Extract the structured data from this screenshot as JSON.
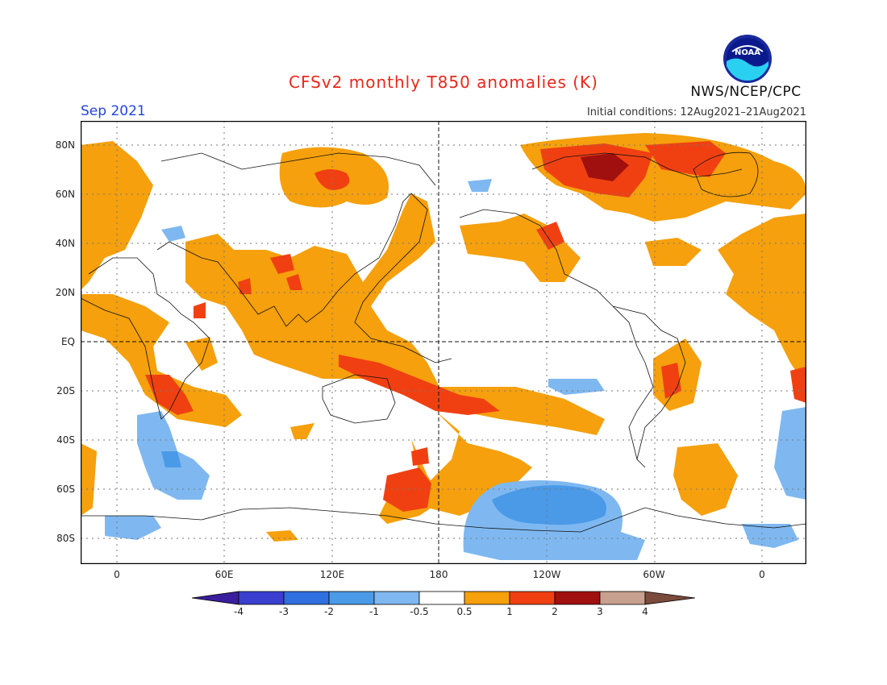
{
  "header": {
    "title": "CFSv2 monthly T850 anomalies (K)",
    "month": "Sep 2021",
    "initial_conditions": "Initial conditions: 12Aug2021–21Aug2021",
    "agency": "NWS/NCEP/CPC",
    "logo_text": "NOAA"
  },
  "axes": {
    "lat_labels": [
      "80N",
      "60N",
      "40N",
      "20N",
      "EQ",
      "20S",
      "40S",
      "60S",
      "80S"
    ],
    "lon_labels": [
      "0",
      "60E",
      "120E",
      "180",
      "120W",
      "60W",
      "0"
    ]
  },
  "colorbar": {
    "labels": [
      "-4",
      "-3",
      "-2",
      "-1",
      "-0.5",
      "0.5",
      "1",
      "2",
      "3",
      "4"
    ],
    "colors": [
      "#3b1e9e",
      "#3a3fcf",
      "#2f6fe0",
      "#4a9ae8",
      "#7fb8f0",
      "#ffffff",
      "#f5a00c",
      "#f04012",
      "#a0100e",
      "#c8a090",
      "#7a4a3a"
    ]
  },
  "palette": {
    "warm1": "#f5a00c",
    "warm2": "#f04012",
    "warm3": "#a0100e",
    "cool1": "#7fb8f0",
    "cool2": "#4a9ae8",
    "cool3": "#2f6fe0"
  }
}
